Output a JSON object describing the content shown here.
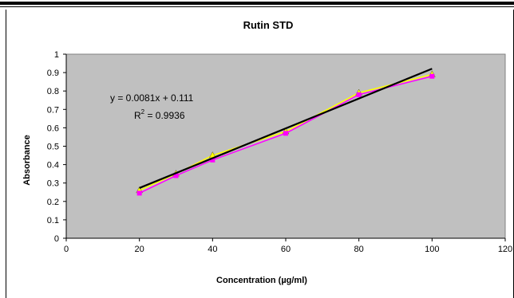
{
  "chart_data": {
    "type": "line",
    "title": "Rutin STD",
    "xlabel": "Concentration (µg/ml)",
    "ylabel": "Absorbance",
    "xlim": [
      0,
      120
    ],
    "ylim": [
      0,
      1
    ],
    "xticks": [
      "0",
      "20",
      "40",
      "60",
      "80",
      "100",
      "120"
    ],
    "yticks": [
      "0",
      "0.1",
      "0.2",
      "0.3",
      "0.4",
      "0.5",
      "0.6",
      "0.7",
      "0.8",
      "0.9",
      "1"
    ],
    "grid": false,
    "plot_background": "#c0c0c0",
    "series": [
      {
        "color": "#ffff00",
        "marker": "triangle",
        "x": [
          20,
          30,
          40,
          60,
          80,
          100
        ],
        "y": [
          0.26,
          0.35,
          0.45,
          0.58,
          0.79,
          0.89
        ]
      },
      {
        "color": "#ff00ff",
        "marker": "square",
        "x": [
          20,
          30,
          40,
          60,
          80,
          100
        ],
        "y": [
          0.245,
          0.34,
          0.425,
          0.57,
          0.78,
          0.88
        ]
      }
    ],
    "trendline": {
      "color": "#000000",
      "slope": 0.0081,
      "intercept": 0.111,
      "x_start": 20,
      "x_end": 100
    },
    "equation_text": "y = 0.0081x + 0.111",
    "r2_prefix": "R",
    "r2_sup": "2",
    "r2_value": " = 0.9936"
  }
}
